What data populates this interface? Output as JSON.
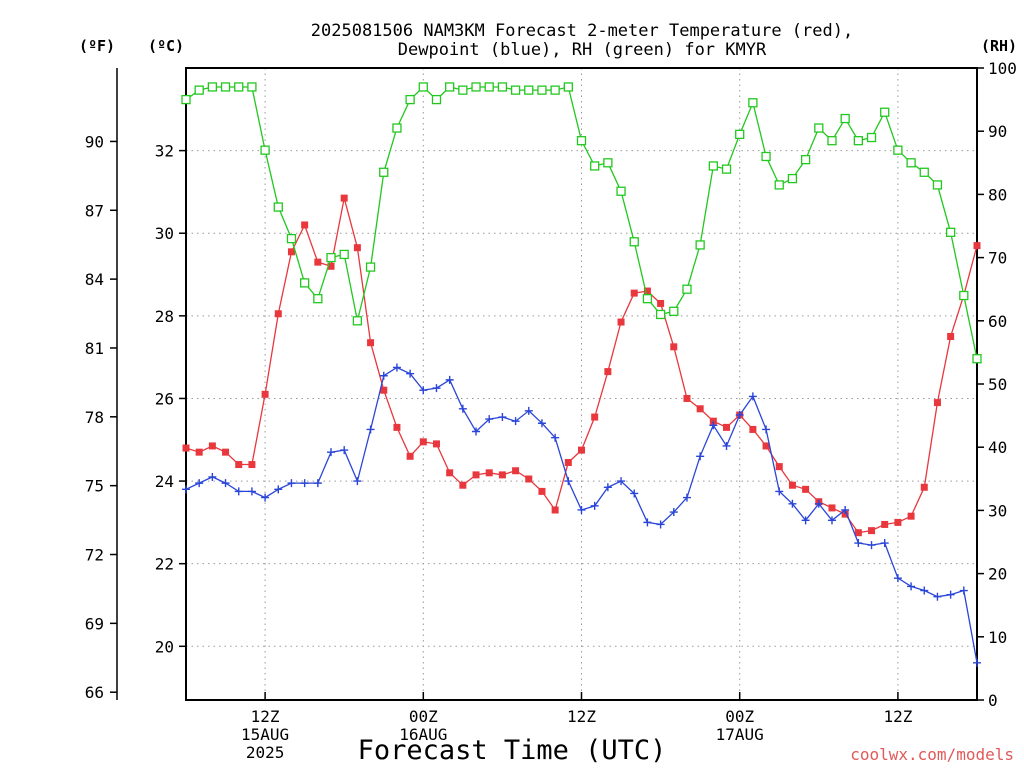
{
  "title": {
    "line1": "2025081506 NAM3KM Forecast 2-meter Temperature (red),",
    "line2": "Dewpoint (blue), RH (green) for KMYR"
  },
  "axes": {
    "f_unit": "(ºF)",
    "c_unit": "(ºC)",
    "rh_unit": "(RH)",
    "xlabel": "Forecast Time (UTC)",
    "credit": "coolwx.com/models"
  },
  "colors": {
    "temperature": "#e8373d",
    "dewpoint": "#2a46d8",
    "rh": "#22c81f",
    "grid": "#9a9a9a",
    "credit": "#e05a5a"
  },
  "chart_data": {
    "type": "line",
    "x_hours_from_init": [
      0,
      1,
      2,
      3,
      4,
      5,
      6,
      7,
      8,
      9,
      10,
      11,
      12,
      13,
      14,
      15,
      16,
      17,
      18,
      19,
      20,
      21,
      22,
      23,
      24,
      25,
      26,
      27,
      28,
      29,
      30,
      31,
      32,
      33,
      34,
      35,
      36,
      37,
      38,
      39,
      40,
      41,
      42,
      43,
      44,
      45,
      46,
      47,
      48,
      49,
      50,
      51,
      52,
      53,
      54,
      55,
      56,
      57,
      58,
      59,
      60
    ],
    "x_ticks": [
      {
        "hour": 6,
        "label": "12Z",
        "date": "15AUG",
        "year": "2025"
      },
      {
        "hour": 18,
        "label": "00Z",
        "date": "16AUG",
        "year": ""
      },
      {
        "hour": 30,
        "label": "12Z",
        "date": "",
        "year": ""
      },
      {
        "hour": 42,
        "label": "00Z",
        "date": "17AUG",
        "year": ""
      },
      {
        "hour": 54,
        "label": "12Z",
        "date": "",
        "year": ""
      }
    ],
    "y_left_c": {
      "range": [
        18.7,
        34.0
      ],
      "ticks": [
        20,
        22,
        24,
        26,
        28,
        30,
        32
      ]
    },
    "y_left_f": {
      "ticks": [
        66,
        69,
        72,
        75,
        78,
        81,
        84,
        87,
        90
      ]
    },
    "y_right_rh": {
      "range": [
        0,
        100
      ],
      "ticks": [
        0,
        10,
        20,
        30,
        40,
        50,
        60,
        70,
        80,
        90,
        100
      ]
    },
    "grid": true,
    "series": [
      {
        "name": "Temperature",
        "unit": "°C",
        "marker": "filled-square",
        "values": [
          24.8,
          24.7,
          24.85,
          24.7,
          24.4,
          24.4,
          26.1,
          28.05,
          29.55,
          30.2,
          29.3,
          29.2,
          30.85,
          29.65,
          27.35,
          26.2,
          25.3,
          24.6,
          24.95,
          24.9,
          24.2,
          23.9,
          24.15,
          24.2,
          24.15,
          24.25,
          24.05,
          23.75,
          23.3,
          24.45,
          24.75,
          25.55,
          26.65,
          27.85,
          28.55,
          28.6,
          28.3,
          27.25,
          26.0,
          25.75,
          25.45,
          25.3,
          25.6,
          25.25,
          24.85,
          24.35,
          23.9,
          23.8,
          23.5,
          23.35,
          23.2,
          22.75,
          22.8,
          22.95,
          23.0,
          23.15,
          23.85,
          25.9,
          27.5,
          28.5,
          29.7
        ]
      },
      {
        "name": "Dewpoint",
        "unit": "°C",
        "marker": "plus",
        "values": [
          23.8,
          23.95,
          24.1,
          23.95,
          23.75,
          23.75,
          23.6,
          23.8,
          23.95,
          23.95,
          23.95,
          24.7,
          24.75,
          24.0,
          25.25,
          26.55,
          26.75,
          26.6,
          26.2,
          26.25,
          26.45,
          25.75,
          25.2,
          25.5,
          25.55,
          25.45,
          25.7,
          25.4,
          25.05,
          24.0,
          23.3,
          23.4,
          23.85,
          24.0,
          23.7,
          23.0,
          22.95,
          23.25,
          23.6,
          24.6,
          25.35,
          24.85,
          25.6,
          26.05,
          25.25,
          23.75,
          23.45,
          23.05,
          23.45,
          23.05,
          23.3,
          22.5,
          22.45,
          22.5,
          21.65,
          21.45,
          21.35,
          21.2,
          21.25,
          21.35,
          19.6
        ]
      },
      {
        "name": "RH",
        "unit": "%",
        "marker": "open-square",
        "values": [
          95,
          96.5,
          97,
          97,
          97,
          97,
          87,
          78,
          73,
          66,
          63.5,
          70,
          70.5,
          60,
          68.5,
          83.5,
          90.5,
          95,
          97,
          95,
          97,
          96.5,
          97,
          97,
          97,
          96.5,
          96.5,
          96.5,
          96.5,
          97,
          88.5,
          84.5,
          85,
          80.5,
          72.5,
          63.5,
          61,
          61.5,
          65,
          72,
          84.5,
          84,
          89.5,
          94.5,
          86,
          81.5,
          82.5,
          85.5,
          90.5,
          88.5,
          92,
          88.5,
          89,
          93,
          87,
          85,
          83.5,
          81.5,
          74,
          64,
          54
        ]
      }
    ]
  }
}
